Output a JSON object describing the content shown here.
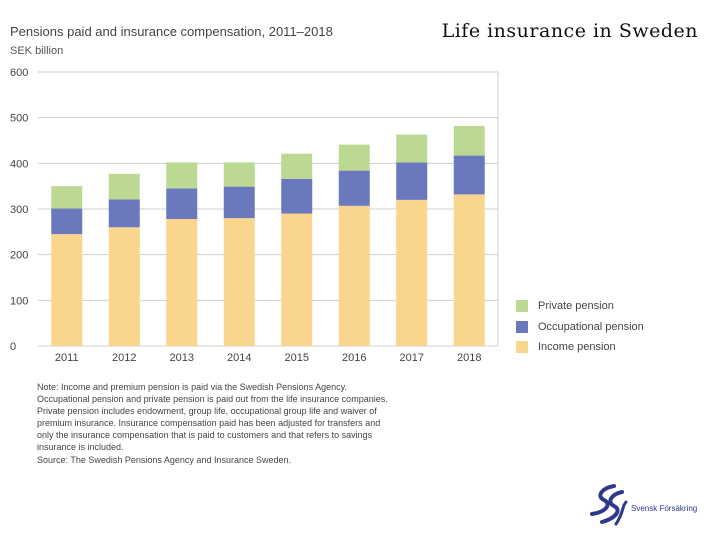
{
  "slide": {
    "title": "Life insurance in Sweden"
  },
  "chart_data": {
    "type": "bar",
    "stacked": true,
    "title": "Pensions paid and insurance compensation, 2011–2018",
    "ylabel": "SEK billion",
    "categories": [
      "2011",
      "2012",
      "2013",
      "2014",
      "2015",
      "2016",
      "2017",
      "2018"
    ],
    "series": [
      {
        "name": "Income pension",
        "color": "#fad58e",
        "values": [
          245,
          260,
          278,
          280,
          290,
          307,
          320,
          332
        ]
      },
      {
        "name": "Occupational pension",
        "color": "#6a78be",
        "values": [
          56,
          61,
          67,
          69,
          76,
          77,
          82,
          85
        ]
      },
      {
        "name": "Private pension",
        "color": "#bcd993",
        "values": [
          49,
          56,
          57,
          53,
          55,
          57,
          61,
          65
        ]
      }
    ],
    "ylim": [
      0,
      600
    ],
    "yticks": [
      0,
      100,
      200,
      300,
      400,
      500,
      600
    ],
    "grid": true,
    "legend": "bottom-right",
    "legend_order": [
      "Private pension",
      "Occupational pension",
      "Income pension"
    ]
  },
  "note": {
    "lines": [
      "Note: Income and premium pension is paid via the Swedish Pensions Agency.",
      "Occupational pension and private pension is paid out from the life insurance companies.",
      "Private pension includes endowment, group life, occupational group life and waiver of",
      "premium insurance. Insurance compensation paid has been adjusted for transfers and",
      "only the insurance compensation that is paid to customers and that refers to savings",
      "insurance is included.",
      "Source: The Swedish Pensions Agency and Insurance Sweden."
    ]
  },
  "logo": {
    "text": "Svensk Försäkring",
    "icon": "svensk-forsakring-logo-icon",
    "color": "#2d3a8c"
  }
}
